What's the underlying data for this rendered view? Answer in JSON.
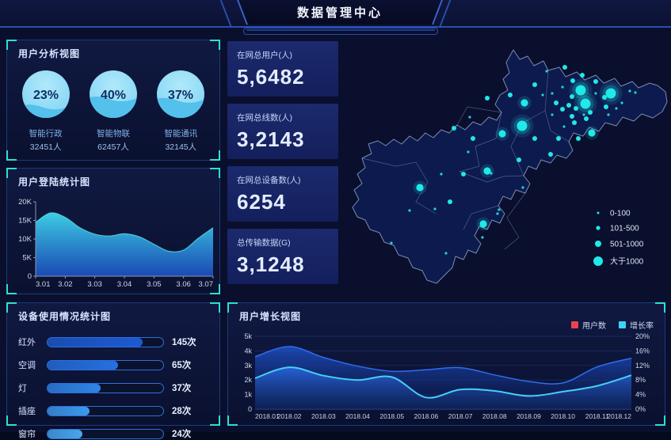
{
  "header": {
    "title": "数据管理中心"
  },
  "panels": {
    "user_analysis": {
      "title": "用户分析视图"
    },
    "login_stats": {
      "title": "用户登陆统计图"
    },
    "device_usage": {
      "title": "设备使用情况统计图"
    },
    "user_growth": {
      "title": "用户增长视图"
    }
  },
  "stats": [
    {
      "label": "在网总用户(人)",
      "value": "5,6482"
    },
    {
      "label": "在网总线数(人)",
      "value": "3,2143"
    },
    {
      "label": "在网总设备数(人)",
      "value": "6254"
    },
    {
      "label": "总传输数据(G)",
      "value": "3,1248"
    }
  ],
  "map": {
    "bubble_color": "#1fe9e9",
    "legend": [
      {
        "label": "0-100"
      },
      {
        "label": "101-500"
      },
      {
        "label": "501-1000"
      },
      {
        "label": "大于1000"
      }
    ],
    "bubbles": [
      [
        303,
        69,
        "xl"
      ],
      [
        341,
        73,
        "xl"
      ],
      [
        309,
        86,
        "xl"
      ],
      [
        229,
        114,
        "xl"
      ],
      [
        204,
        124,
        "l"
      ],
      [
        100,
        192,
        "l"
      ],
      [
        180,
        238,
        "l"
      ],
      [
        317,
        123,
        "l"
      ],
      [
        185,
        171,
        "l"
      ],
      [
        232,
        85,
        "l"
      ],
      [
        185,
        79,
        "m"
      ],
      [
        214,
        75,
        "m"
      ],
      [
        167,
        130,
        "m"
      ],
      [
        245,
        130,
        "m"
      ],
      [
        265,
        150,
        "m"
      ],
      [
        225,
        157,
        "m"
      ],
      [
        155,
        175,
        "m"
      ],
      [
        138,
        210,
        "m"
      ],
      [
        283,
        40,
        "m"
      ],
      [
        305,
        50,
        "m"
      ],
      [
        293,
        57,
        "m"
      ],
      [
        322,
        58,
        "m"
      ],
      [
        292,
        77,
        "m"
      ],
      [
        333,
        78,
        "m"
      ],
      [
        288,
        88,
        "m"
      ],
      [
        280,
        93,
        "m"
      ],
      [
        297,
        92,
        "m"
      ],
      [
        315,
        97,
        "m"
      ],
      [
        335,
        90,
        "m"
      ],
      [
        292,
        102,
        "m"
      ],
      [
        295,
        110,
        "m"
      ],
      [
        310,
        105,
        "m"
      ],
      [
        275,
        130,
        "m"
      ],
      [
        300,
        130,
        "m"
      ],
      [
        272,
        85,
        "m"
      ],
      [
        143,
        117,
        "m"
      ],
      [
        245,
        62,
        "m"
      ],
      [
        163,
        103,
        "s"
      ],
      [
        161,
        147,
        "s"
      ],
      [
        127,
        175,
        "s"
      ],
      [
        119,
        219,
        "s"
      ],
      [
        87,
        221,
        "s"
      ],
      [
        200,
        220,
        "s"
      ],
      [
        198,
        225,
        "s"
      ],
      [
        179,
        255,
        "s"
      ],
      [
        64,
        262,
        "s"
      ],
      [
        133,
        275,
        "s"
      ],
      [
        230,
        192,
        "s"
      ],
      [
        190,
        174,
        "s"
      ],
      [
        267,
        73,
        "s"
      ],
      [
        280,
        65,
        "s"
      ],
      [
        322,
        73,
        "s"
      ],
      [
        348,
        92,
        "s"
      ],
      [
        267,
        100,
        "s"
      ],
      [
        307,
        100,
        "s"
      ],
      [
        282,
        115,
        "s"
      ],
      [
        365,
        70,
        "s"
      ],
      [
        372,
        72,
        "s"
      ],
      [
        255,
        75,
        "s"
      ],
      [
        260,
        45,
        "s"
      ],
      [
        338,
        100,
        "s"
      ],
      [
        355,
        85,
        "s"
      ]
    ]
  },
  "chart_data": [
    {
      "id": "user_analysis_gauges",
      "type": "gauge",
      "title": "用户分析视图",
      "items": [
        {
          "percent": 23,
          "label": "智能行政",
          "sub": "32451人"
        },
        {
          "percent": 40,
          "label": "智能物联",
          "sub": "62457人"
        },
        {
          "percent": 37,
          "label": "智能通讯",
          "sub": "32145人"
        }
      ]
    },
    {
      "id": "login_stats",
      "type": "area",
      "title": "用户登陆统计图",
      "x_labels": [
        "3.01",
        "3.02",
        "3.03",
        "3.04",
        "3.05",
        "3.06",
        "3.07"
      ],
      "values_k": [
        14.5,
        17,
        15.8,
        13,
        11.3,
        10.8,
        11.4,
        10.6,
        8.6,
        6.7,
        7.0,
        10.2,
        13
      ],
      "ylim": [
        0,
        20
      ],
      "yticks": [
        "0",
        "5K",
        "10K",
        "15K",
        "20K"
      ],
      "grid": false,
      "colors": {
        "top": "#3fd6ec",
        "bottom": "#1c50c2",
        "line": "#56e0f0",
        "axis": "#8e98ac"
      }
    },
    {
      "id": "device_usage",
      "type": "bar",
      "title": "设备使用情况统计图",
      "categories": [
        "红外",
        "空调",
        "灯",
        "插座",
        "窗帘"
      ],
      "values": [
        145,
        65,
        37,
        28,
        24
      ],
      "unit": "次",
      "fill_pct": [
        0.82,
        0.61,
        0.46,
        0.36,
        0.3
      ],
      "bar_colors": [
        "#1d5bd3",
        "#2570e0",
        "#2e84e7",
        "#3d99ec",
        "#48a5ef"
      ]
    },
    {
      "id": "user_growth",
      "type": "area",
      "title": "用户增长视图",
      "categories": [
        "2018.01",
        "2018.02",
        "2018.03",
        "2018.04",
        "2018.05",
        "2018.06",
        "2018.07",
        "2018.08",
        "2018.09",
        "2018.10",
        "2018.11",
        "2018.12"
      ],
      "legend": [
        {
          "label": "用户数",
          "swatch": "#e8434e"
        },
        {
          "label": "增长率",
          "swatch": "#3fd4f0"
        }
      ],
      "series": [
        {
          "name": "用户数",
          "axis": "left",
          "line": "#2f6df0",
          "values_k": [
            3.6,
            4.3,
            3.55,
            2.95,
            2.6,
            2.7,
            2.85,
            2.35,
            1.9,
            1.8,
            2.9,
            3.5
          ]
        },
        {
          "name": "增长率",
          "axis": "right",
          "line": "#45d0f6",
          "values_pct": [
            8.5,
            11.5,
            9.2,
            8.0,
            8.8,
            3.2,
            5.4,
            5.0,
            3.6,
            4.8,
            6.4,
            9.3
          ]
        }
      ],
      "left_ticks": [
        "0",
        "1k",
        "2k",
        "3k",
        "4k",
        "5k"
      ],
      "right_ticks": [
        "0%",
        "4%",
        "8%",
        "12%",
        "16%",
        "20%"
      ],
      "left_lim": [
        0,
        5
      ],
      "right_lim": [
        0,
        20
      ],
      "grid": true,
      "legend_position": "top-right"
    }
  ]
}
